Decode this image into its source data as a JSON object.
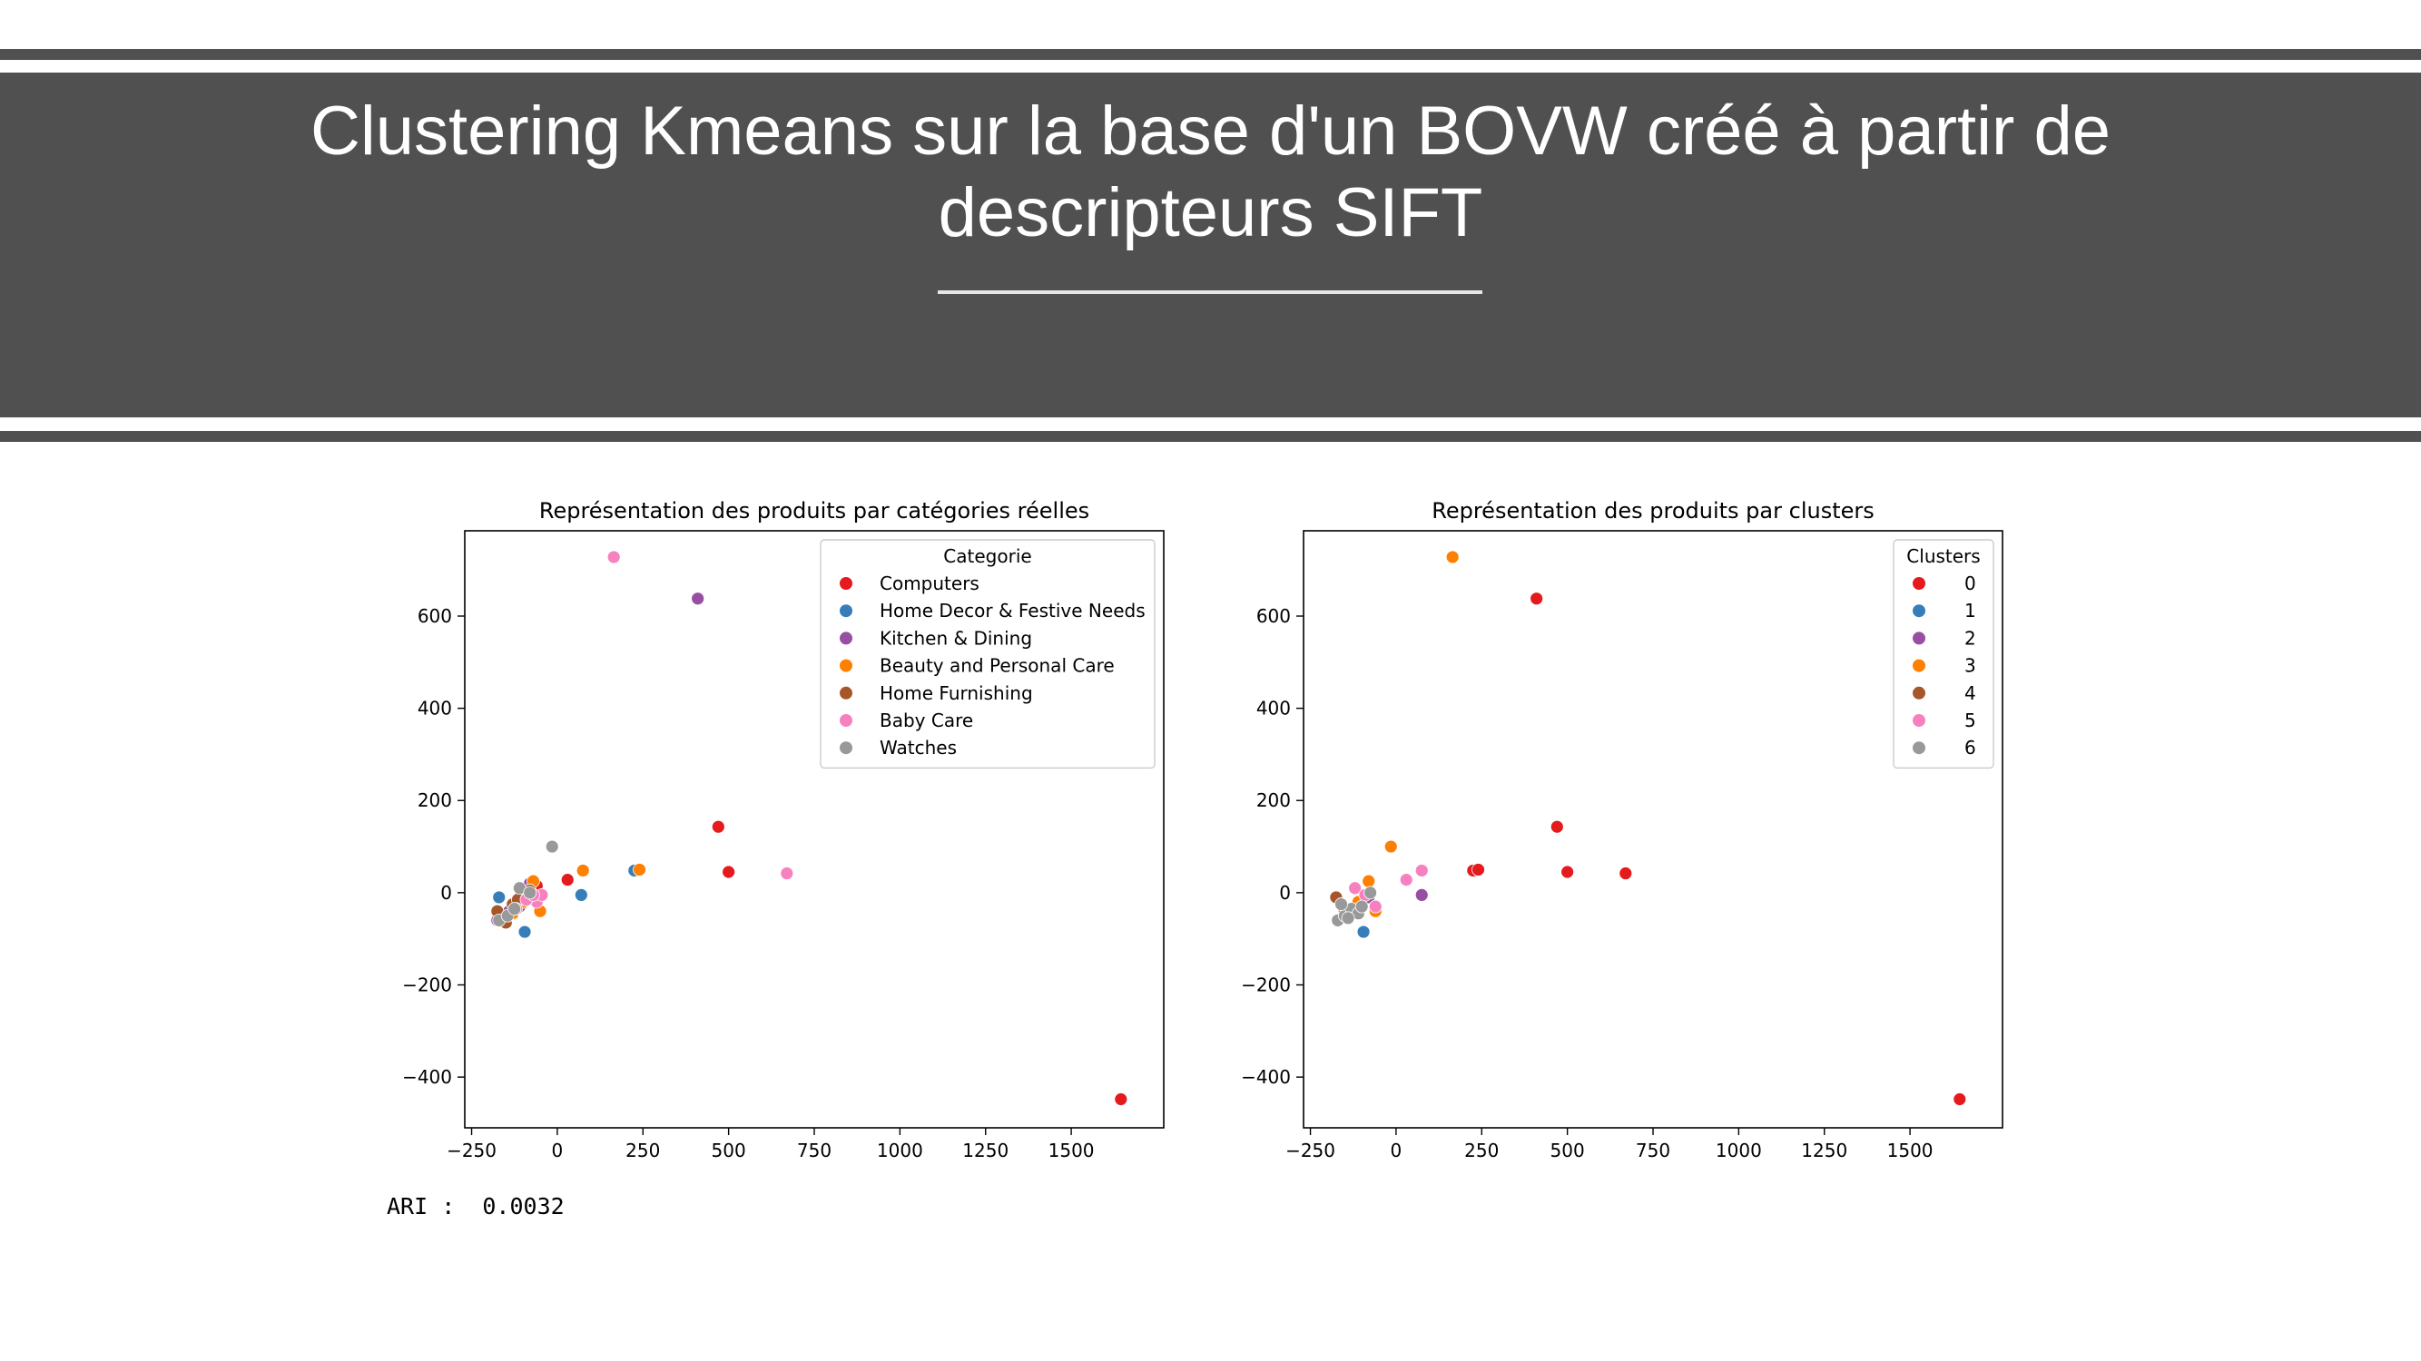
{
  "slide": {
    "title_line1": "Clustering Kmeans sur la base d'un BOVW créé à partir de",
    "title_line2": "descripteurs SIFT"
  },
  "ari": {
    "label": "ARI :",
    "value": "0.0032"
  },
  "chart_data": [
    {
      "type": "scatter",
      "title": "Représentation des produits par catégories réelles",
      "xlabel": "",
      "ylabel": "",
      "xlim": [
        -270,
        1770
      ],
      "ylim": [
        -510,
        785
      ],
      "xticks": [
        -250,
        0,
        250,
        500,
        750,
        1000,
        1250,
        1500
      ],
      "yticks": [
        -400,
        -200,
        0,
        200,
        400,
        600
      ],
      "legend": {
        "title": "Categorie",
        "placement": "top-right"
      },
      "series": [
        {
          "name": "Computers",
          "color": "#e41a1c",
          "points": [
            [
              30,
              28
            ],
            [
              470,
              143
            ],
            [
              500,
              45
            ],
            [
              1645,
              -448
            ],
            [
              -160,
              -48
            ],
            [
              -60,
              15
            ]
          ]
        },
        {
          "name": "Home Decor & Festive Needs",
          "color": "#377eb8",
          "points": [
            [
              -170,
              -10
            ],
            [
              -95,
              -85
            ],
            [
              70,
              -5
            ],
            [
              225,
              48
            ],
            [
              -150,
              -55
            ],
            [
              -120,
              -25
            ]
          ]
        },
        {
          "name": "Kitchen & Dining",
          "color": "#984ea3",
          "points": [
            [
              410,
              638
            ],
            [
              -80,
              20
            ],
            [
              -140,
              -40
            ],
            [
              -175,
              -60
            ],
            [
              -110,
              -30
            ],
            [
              -60,
              -10
            ]
          ]
        },
        {
          "name": "Beauty and Personal Care",
          "color": "#ff7f00",
          "points": [
            [
              75,
              48
            ],
            [
              240,
              50
            ],
            [
              -50,
              -40
            ],
            [
              -100,
              -20
            ],
            [
              -70,
              25
            ],
            [
              -130,
              -45
            ]
          ]
        },
        {
          "name": "Home Furnishing",
          "color": "#a65628",
          "points": [
            [
              -175,
              -40
            ],
            [
              -130,
              -25
            ],
            [
              -80,
              5
            ],
            [
              -150,
              -65
            ],
            [
              -115,
              -15
            ]
          ]
        },
        {
          "name": "Baby Care",
          "color": "#f781bf",
          "points": [
            [
              165,
              728
            ],
            [
              670,
              42
            ],
            [
              -60,
              -20
            ],
            [
              -45,
              -5
            ],
            [
              -90,
              -15
            ],
            [
              -70,
              -5
            ],
            [
              -120,
              -35
            ]
          ]
        },
        {
          "name": "Watches",
          "color": "#999999",
          "points": [
            [
              -15,
              100
            ],
            [
              -110,
              10
            ],
            [
              -170,
              -60
            ],
            [
              -145,
              -50
            ],
            [
              -125,
              -35
            ],
            [
              -80,
              0
            ]
          ]
        }
      ]
    },
    {
      "type": "scatter",
      "title": "Représentation des produits par clusters",
      "xlabel": "",
      "ylabel": "",
      "xlim": [
        -270,
        1770
      ],
      "ylim": [
        -510,
        785
      ],
      "xticks": [
        -250,
        0,
        250,
        500,
        750,
        1000,
        1250,
        1500
      ],
      "yticks": [
        -400,
        -200,
        0,
        200,
        400,
        600
      ],
      "legend": {
        "title": "Clusters",
        "placement": "top-right"
      },
      "series": [
        {
          "name": "0",
          "color": "#e41a1c",
          "points": [
            [
              410,
              638
            ],
            [
              470,
              143
            ],
            [
              500,
              45
            ],
            [
              670,
              42
            ],
            [
              225,
              48
            ],
            [
              240,
              50
            ],
            [
              1645,
              -448
            ]
          ]
        },
        {
          "name": "1",
          "color": "#377eb8",
          "points": [
            [
              -95,
              -85
            ]
          ]
        },
        {
          "name": "2",
          "color": "#984ea3",
          "points": [
            [
              75,
              -5
            ],
            [
              -80,
              -10
            ]
          ]
        },
        {
          "name": "3",
          "color": "#ff7f00",
          "points": [
            [
              165,
              728
            ],
            [
              -15,
              100
            ],
            [
              -80,
              25
            ],
            [
              -60,
              -40
            ],
            [
              -110,
              -20
            ]
          ]
        },
        {
          "name": "4",
          "color": "#a65628",
          "points": [
            [
              -175,
              -10
            ],
            [
              -150,
              -40
            ]
          ]
        },
        {
          "name": "5",
          "color": "#f781bf",
          "points": [
            [
              30,
              28
            ],
            [
              75,
              48
            ],
            [
              -120,
              10
            ],
            [
              -60,
              -30
            ],
            [
              -90,
              -5
            ]
          ]
        },
        {
          "name": "6",
          "color": "#999999",
          "points": [
            [
              -170,
              -60
            ],
            [
              -150,
              -50
            ],
            [
              -130,
              -35
            ],
            [
              -110,
              -45
            ],
            [
              -160,
              -25
            ],
            [
              -100,
              -30
            ],
            [
              -140,
              -55
            ],
            [
              -75,
              0
            ]
          ]
        }
      ]
    }
  ]
}
